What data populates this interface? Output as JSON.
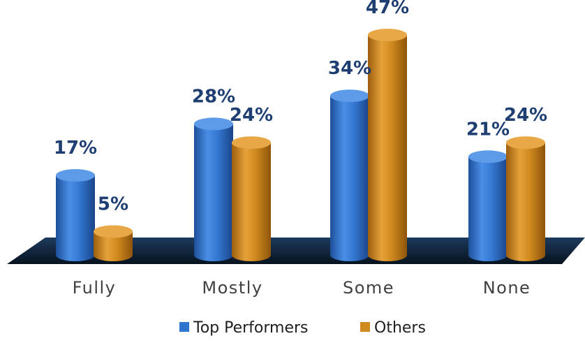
{
  "colors": {
    "top_performers": "#2e75cf",
    "others": "#d08a1e",
    "label": "#1f3f73",
    "floor": "#0e2238"
  },
  "chart_data": {
    "type": "bar",
    "style": "3d-cylinder",
    "categories": [
      "Fully",
      "Mostly",
      "Some",
      "None"
    ],
    "series": [
      {
        "name": "Top Performers",
        "values": [
          17,
          28,
          34,
          21
        ],
        "labels": [
          "17%",
          "28%",
          "34%",
          "21%"
        ]
      },
      {
        "name": "Others",
        "values": [
          5,
          24,
          47,
          24
        ],
        "labels": [
          "5%",
          "24%",
          "47%",
          "24%"
        ]
      }
    ],
    "ylim": [
      0,
      50
    ],
    "value_unit": "%",
    "grid": false,
    "legend_position": "bottom"
  }
}
